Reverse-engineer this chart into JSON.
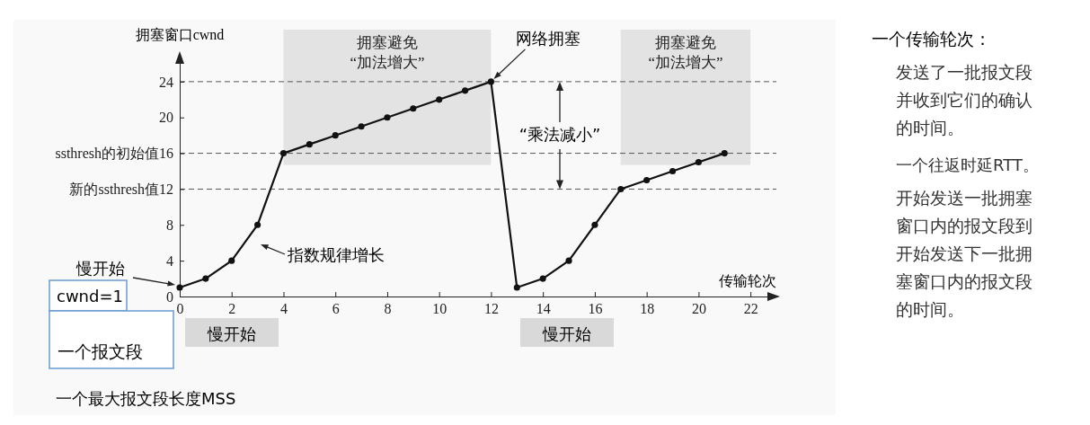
{
  "chart_data": {
    "type": "line",
    "xlabel": "传输轮次",
    "ylabel": "拥塞窗口cwnd",
    "xlim": [
      0,
      23
    ],
    "ylim": [
      0,
      27
    ],
    "xticks": [
      0,
      2,
      4,
      6,
      8,
      10,
      12,
      14,
      16,
      18,
      20,
      22
    ],
    "yticks": [
      0,
      4,
      8,
      {
        "value": 12,
        "label": "新的ssthresh值12"
      },
      {
        "value": 16,
        "label": "ssthresh的初始值16"
      },
      20,
      24
    ],
    "series": [
      {
        "color": "#111111",
        "x": [
          0,
          1,
          2,
          3,
          4,
          5,
          6,
          7,
          8,
          9,
          10,
          11,
          12,
          13,
          14,
          15,
          16,
          17,
          18,
          19,
          20,
          21
        ],
        "values": [
          1,
          2,
          4,
          8,
          16,
          17,
          18,
          19,
          20,
          21,
          22,
          23,
          24,
          1,
          2,
          4,
          8,
          12,
          13,
          14,
          15,
          16
        ]
      }
    ],
    "marker": "circle",
    "line_style": "solid",
    "ref_lines": [
      {
        "axis": "y",
        "value": 24,
        "line_style": "dashed",
        "color": "#555555"
      },
      {
        "axis": "y",
        "value": 16,
        "line_style": "dashed",
        "color": "#555555"
      },
      {
        "axis": "y",
        "value": 12,
        "line_style": "dashed",
        "color": "#555555"
      }
    ],
    "bands": [
      {
        "axis": "x",
        "from": 4,
        "to": 12,
        "label": "拥塞避免\n“加法增大”",
        "color": "#e3e3e3"
      },
      {
        "axis": "x",
        "from": 17,
        "to": 22,
        "label": "拥塞避免\n“加法增大”",
        "color": "#e3e3e3"
      }
    ],
    "annotations": [
      {
        "text": "网络拥塞",
        "x": 12,
        "y": 24
      },
      "慢开始",
      "指数规律增长",
      "“乘法减小”",
      "慢开始",
      "慢开始",
      "cwnd=1",
      "一个报文段",
      "一个最大报文段长度MSS",
      "一个传输轮次：",
      "发送了一批报文段并收到它们的确认的时间。",
      "一个往返时延RTT。",
      "开始发送一批拥塞窗口内的报文段到开始发送下一批拥塞窗口内的报文段的时间。"
    ]
  }
}
